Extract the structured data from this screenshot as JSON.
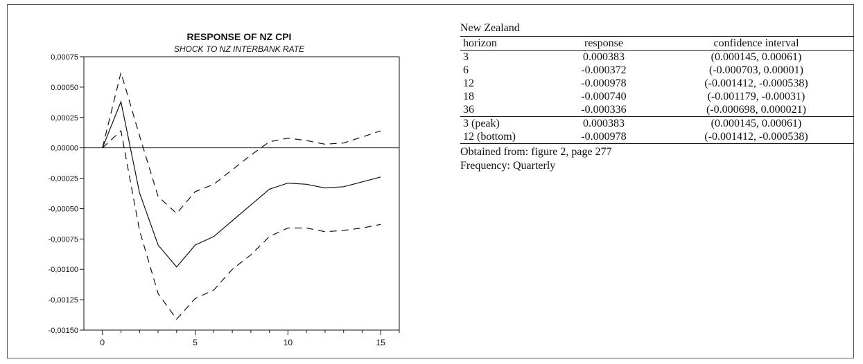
{
  "chart_data": {
    "type": "line",
    "title": "RESPONSE OF NZ CPI",
    "subtitle": "SHOCK TO NZ INTERBANK RATE",
    "xlim": [
      -1,
      16
    ],
    "ylim": [
      -0.0015,
      0.00075
    ],
    "x_ticks": [
      0,
      5,
      10,
      15
    ],
    "x_tick_labels": [
      "0",
      "5",
      "10",
      "15"
    ],
    "y_ticks": [
      0.00075,
      0.0005,
      0.00025,
      0,
      -0.00025,
      -0.0005,
      -0.00075,
      -0.001,
      -0.00125,
      -0.0015
    ],
    "y_tick_labels": [
      "0,00075",
      "0.00050",
      "0,00025",
      "0,00000",
      "-0,00025",
      "-0,00050",
      "-0,00075",
      "-0,00100",
      "-0,00125",
      "-0,00150"
    ],
    "x": [
      0,
      1,
      2,
      3,
      4,
      5,
      6,
      7,
      8,
      9,
      10,
      11,
      12,
      13,
      14,
      15
    ],
    "series": [
      {
        "style": "solid",
        "values": [
          0,
          0.00038,
          -0.00037,
          -0.0008,
          -0.00098,
          -0.0008,
          -0.00073,
          -0.0006,
          -0.00047,
          -0.00034,
          -0.00029,
          -0.0003,
          -0.00033,
          -0.00032,
          -0.00028,
          -0.00024
        ]
      },
      {
        "style": "dashed",
        "values": [
          0,
          0.00062,
          0.0001,
          -0.0004,
          -0.00054,
          -0.00036,
          -0.0003,
          -0.00018,
          -6e-05,
          5e-05,
          8e-05,
          6e-05,
          3e-05,
          4e-05,
          9e-05,
          0.00014
        ]
      },
      {
        "style": "dashed",
        "values": [
          0,
          0.00014,
          -0.00068,
          -0.0012,
          -0.00141,
          -0.00124,
          -0.00117,
          -0.001,
          -0.00088,
          -0.00073,
          -0.00066,
          -0.00066,
          -0.00069,
          -0.00068,
          -0.00066,
          -0.00063
        ]
      }
    ],
    "zero_line": true,
    "grid": false
  },
  "table": {
    "title": "New Zealand",
    "headers": [
      "horizon",
      "response",
      "confidence interval"
    ],
    "rows": [
      [
        "3",
        "0.000383",
        "(0.000145, 0.00061)"
      ],
      [
        "6",
        "-0.000372",
        "(-0.000703, 0.00001)"
      ],
      [
        "12",
        "-0.000978",
        "(-0.001412, -0.000538)"
      ],
      [
        "18",
        "-0.000740",
        "(-0.001179, -0.00031)"
      ],
      [
        "36",
        "-0.000336",
        "(-0.000698, 0.000021)"
      ]
    ],
    "summary_rows": [
      [
        "3 (peak)",
        "0.000383",
        "(0.000145, 0.00061)"
      ],
      [
        "12 (bottom)",
        "-0.000978",
        "(-0.001412, -0.000538)"
      ]
    ],
    "notes": [
      "Obtained from: figure 2, page 277",
      "Frequency: Quarterly"
    ]
  }
}
